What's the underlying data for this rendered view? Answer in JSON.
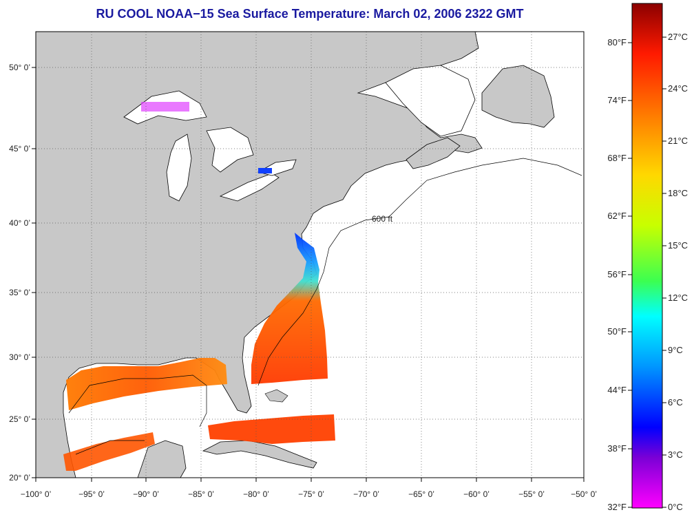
{
  "title": "RU COOL  NOAA−15  Sea Surface Temperature:  March 02, 2006 2322 GMT",
  "map": {
    "lon_ticks": [
      "−100° 0’",
      "−95° 0’",
      "−90° 0’",
      "−85° 0’",
      "−80° 0’",
      "−75° 0’",
      "−70° 0’",
      "−65° 0’",
      "−60° 0’",
      "−55° 0’",
      "−50° 0’"
    ],
    "lat_ticks": [
      "50° 0’",
      "45° 0’",
      "40° 0’",
      "35° 0’",
      "30° 0’",
      "25° 0’",
      "20° 0’"
    ],
    "isobath_label": "600 ft",
    "colors": {
      "land": "#c8c8c8",
      "water": "#ffffff",
      "grid": "#555555"
    }
  },
  "colorbar": {
    "fahrenheit": [
      "80°F",
      "74°F",
      "68°F",
      "62°F",
      "56°F",
      "50°F",
      "44°F",
      "38°F",
      "32°F"
    ],
    "celsius": [
      "27°C",
      "24°C",
      "21°C",
      "18°C",
      "15°C",
      "12°C",
      "9°C",
      "6°C",
      "3°C",
      "0°C"
    ],
    "gradient": [
      "#8b0000",
      "#ff1a00",
      "#ff7a00",
      "#ffd800",
      "#c8ff00",
      "#3cff50",
      "#00ffff",
      "#0096ff",
      "#0000ff",
      "#7a00d6",
      "#ff00ff"
    ]
  }
}
